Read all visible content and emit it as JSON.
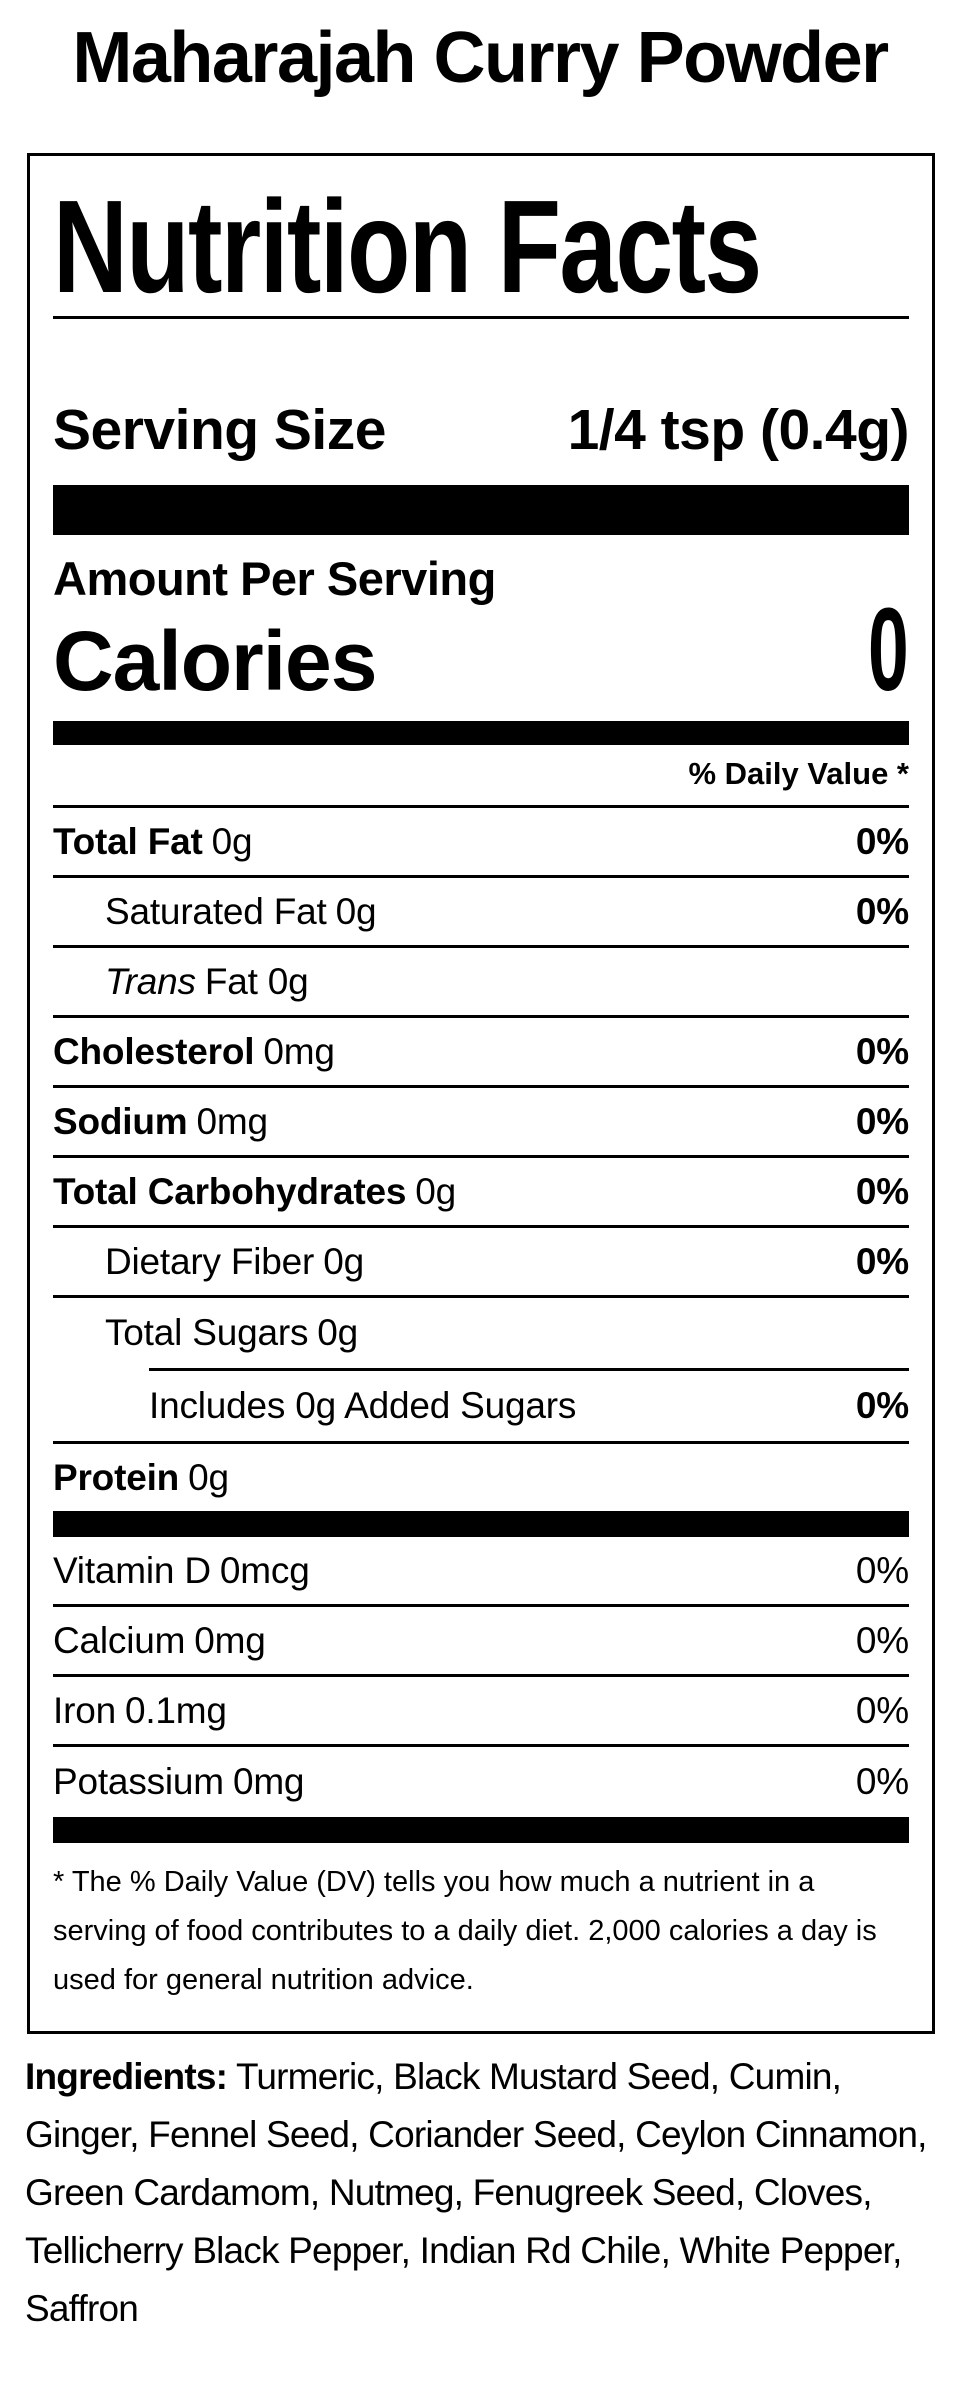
{
  "title": "Maharajah Curry Powder",
  "label": {
    "heading": "Nutrition Facts",
    "serving": {
      "label": "Serving Size",
      "value": "1/4 tsp (0.4g)"
    },
    "amount_per_serving": "Amount Per Serving",
    "calories_label": "Calories",
    "calories_value": "0",
    "daily_value_header": "% Daily Value *",
    "rows": [
      {
        "label": "Total Fat",
        "amount": "0g",
        "dv": "0%"
      },
      {
        "label": "Saturated Fat",
        "amount": "0g",
        "dv": "0%"
      },
      {
        "label": "Trans",
        "amount": "Fat 0g",
        "dv": ""
      },
      {
        "label": "Cholesterol",
        "amount": "0mg",
        "dv": "0%"
      },
      {
        "label": "Sodium",
        "amount": "0mg",
        "dv": "0%"
      },
      {
        "label": "Total Carbohydrates",
        "amount": "0g",
        "dv": "0%"
      },
      {
        "label": "Dietary Fiber",
        "amount": "0g",
        "dv": "0%"
      },
      {
        "label": "Total Sugars",
        "amount": "0g",
        "dv": ""
      },
      {
        "label": "Includes 0g Added Sugars",
        "amount": "",
        "dv": "0%"
      },
      {
        "label": "Protein",
        "amount": "0g",
        "dv": ""
      },
      {
        "label": "Vitamin D",
        "amount": "0mcg",
        "dv": "0%"
      },
      {
        "label": "Calcium",
        "amount": "0mg",
        "dv": "0%"
      },
      {
        "label": "Iron",
        "amount": "0.1mg",
        "dv": "0%"
      },
      {
        "label": "Potassium",
        "amount": "0mg",
        "dv": "0%"
      }
    ],
    "footnote": "* The % Daily Value (DV) tells you how much a nutrient in a serving of food contributes to a daily diet. 2,000 calories a day is used for general nutrition advice."
  },
  "ingredients": {
    "label": "Ingredients:",
    "text": "Turmeric, Black Mustard Seed, Cumin, Ginger, Fennel Seed, Coriander Seed, Ceylon Cinnamon, Green Cardamom, Nutmeg, Fenugreek Seed, Cloves, Tellicherry Black Pepper, Indian Rd Chile, White Pepper, Saffron"
  },
  "colors": {
    "background": "#ffffff",
    "text": "#000000",
    "bars": "#000000"
  }
}
